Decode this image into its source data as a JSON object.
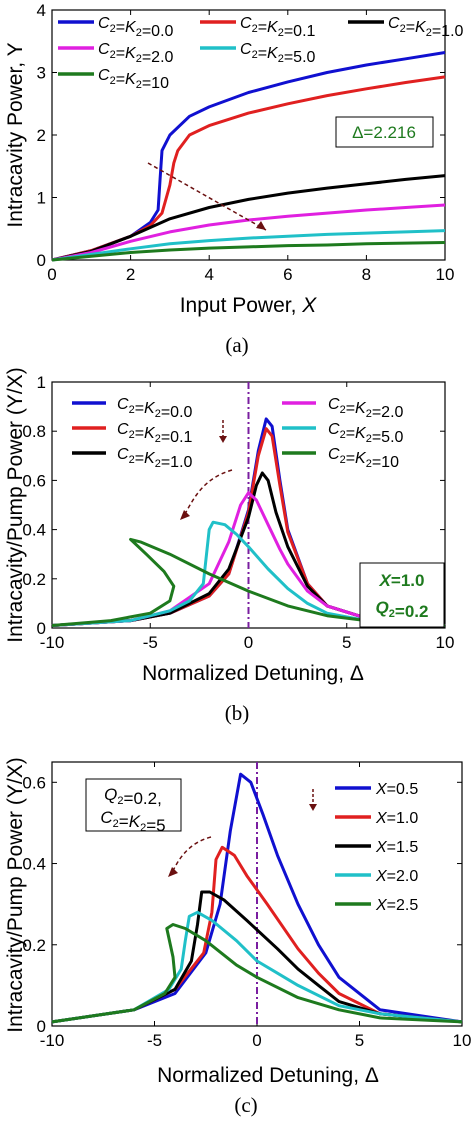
{
  "chart_data": [
    {
      "panel": "a",
      "type": "line",
      "caption": "(a)",
      "xlabel": "Input Power, X",
      "ylabel": "Intracavity Power, Y",
      "xlim": [
        0,
        10
      ],
      "ylim": [
        0,
        4
      ],
      "xticks": [
        "0",
        "2",
        "4",
        "6",
        "8",
        "10"
      ],
      "yticks": [
        "0",
        "1",
        "2",
        "3",
        "4"
      ],
      "legend_position": "top",
      "annotation": "Δ=2.216",
      "annotation_color": "#1e7a1e",
      "series": [
        {
          "name": "C2=K2=0.0",
          "color": "#1010d0",
          "x": [
            0,
            1,
            2,
            2.5,
            2.7,
            2.75,
            2.8,
            3,
            3.5,
            4,
            5,
            6,
            7,
            8,
            9,
            10
          ],
          "y": [
            0,
            0.15,
            0.38,
            0.6,
            0.8,
            1.3,
            1.75,
            2.0,
            2.3,
            2.45,
            2.68,
            2.85,
            3.0,
            3.12,
            3.22,
            3.32
          ]
        },
        {
          "name": "C2=K2=0.1",
          "color": "#e02020",
          "x": [
            0,
            1,
            2,
            2.5,
            2.8,
            3.0,
            3.1,
            3.2,
            3.5,
            4,
            5,
            6,
            7,
            8,
            9,
            10
          ],
          "y": [
            0,
            0.15,
            0.38,
            0.55,
            0.75,
            1.2,
            1.55,
            1.75,
            2.0,
            2.15,
            2.35,
            2.5,
            2.63,
            2.74,
            2.84,
            2.93
          ]
        },
        {
          "name": "C2=K2=1.0",
          "color": "#000000",
          "x": [
            0,
            1,
            2,
            3,
            4,
            5,
            6,
            7,
            8,
            9,
            10
          ],
          "y": [
            0,
            0.14,
            0.38,
            0.66,
            0.84,
            0.97,
            1.07,
            1.15,
            1.22,
            1.29,
            1.35
          ]
        },
        {
          "name": "C2=K2=2.0",
          "color": "#e020e0",
          "x": [
            0,
            1,
            2,
            3,
            4,
            5,
            6,
            7,
            8,
            9,
            10
          ],
          "y": [
            0,
            0.12,
            0.3,
            0.45,
            0.56,
            0.64,
            0.7,
            0.75,
            0.8,
            0.84,
            0.88
          ]
        },
        {
          "name": "C2=K2=5.0",
          "color": "#20c0c8",
          "x": [
            0,
            1,
            2,
            3,
            4,
            5,
            6,
            7,
            8,
            9,
            10
          ],
          "y": [
            0,
            0.09,
            0.18,
            0.26,
            0.31,
            0.35,
            0.38,
            0.41,
            0.43,
            0.45,
            0.47
          ]
        },
        {
          "name": "C2=K2=10",
          "color": "#1e7a1e",
          "x": [
            0,
            1,
            2,
            3,
            4,
            5,
            6,
            7,
            8,
            9,
            10
          ],
          "y": [
            0,
            0.06,
            0.12,
            0.16,
            0.19,
            0.21,
            0.23,
            0.24,
            0.26,
            0.27,
            0.28
          ]
        }
      ]
    },
    {
      "panel": "b",
      "type": "line",
      "caption": "(b)",
      "xlabel": "Normalized Detuning, Δ",
      "ylabel": "Intracavity/Pump Power (Y/X)",
      "xlim": [
        -10,
        10
      ],
      "ylim": [
        0,
        1
      ],
      "xticks": [
        "-10",
        "-5",
        "0",
        "5",
        "10"
      ],
      "yticks": [
        "0",
        "0.2",
        "0.4",
        "0.6",
        "0.8",
        "1"
      ],
      "legend_position": "top",
      "annotation_lines": [
        "X=1.0",
        "Q2=0.2"
      ],
      "annotation_color": "#1e7a1e",
      "series": [
        {
          "name": "C2=K2=0.0",
          "color": "#1010d0",
          "x": [
            -10,
            -6,
            -4,
            -2,
            -1,
            0,
            0.5,
            0.9,
            1.2,
            1.6,
            2,
            3,
            4,
            6,
            10
          ],
          "y": [
            0.01,
            0.03,
            0.06,
            0.13,
            0.22,
            0.48,
            0.72,
            0.85,
            0.82,
            0.6,
            0.4,
            0.18,
            0.09,
            0.04,
            0.01
          ]
        },
        {
          "name": "C2=K2=0.1",
          "color": "#e02020",
          "x": [
            -10,
            -6,
            -4,
            -2,
            -1,
            0,
            0.5,
            0.9,
            1.2,
            1.6,
            2,
            3,
            4,
            6,
            10
          ],
          "y": [
            0.01,
            0.03,
            0.06,
            0.13,
            0.22,
            0.47,
            0.7,
            0.81,
            0.78,
            0.58,
            0.39,
            0.18,
            0.09,
            0.04,
            0.01
          ]
        },
        {
          "name": "C2=K2=1.0",
          "color": "#000000",
          "x": [
            -10,
            -6,
            -4,
            -2,
            -1,
            0,
            0.4,
            0.7,
            1.0,
            1.4,
            2,
            3,
            4,
            6,
            10
          ],
          "y": [
            0.01,
            0.03,
            0.06,
            0.14,
            0.24,
            0.45,
            0.58,
            0.63,
            0.6,
            0.47,
            0.33,
            0.17,
            0.09,
            0.04,
            0.01
          ]
        },
        {
          "name": "C2=K2=2.0",
          "color": "#e020e0",
          "x": [
            -10,
            -6,
            -4,
            -2,
            -1,
            -0.4,
            0,
            0.4,
            1.0,
            1.6,
            2,
            3,
            4,
            6,
            10
          ],
          "y": [
            0.01,
            0.03,
            0.07,
            0.18,
            0.35,
            0.5,
            0.55,
            0.52,
            0.42,
            0.32,
            0.26,
            0.15,
            0.09,
            0.04,
            0.01
          ]
        },
        {
          "name": "C2=K2=5.0",
          "color": "#20c0c8",
          "x": [
            -10,
            -6,
            -4,
            -3,
            -2.3,
            -2.0,
            -1.8,
            -1.2,
            -0.6,
            0,
            1,
            2,
            3,
            4,
            6,
            10
          ],
          "y": [
            0.01,
            0.03,
            0.07,
            0.11,
            0.18,
            0.4,
            0.43,
            0.42,
            0.38,
            0.33,
            0.24,
            0.16,
            0.1,
            0.06,
            0.03,
            0.01
          ]
        },
        {
          "name": "C2=K2=10",
          "color": "#1e7a1e",
          "x": [
            -10,
            -7,
            -5,
            -4,
            -3.8,
            -4.3,
            -5.2,
            -6,
            -5.5,
            -4,
            -2,
            0,
            2,
            4,
            6,
            10
          ],
          "y": [
            0.01,
            0.03,
            0.06,
            0.11,
            0.17,
            0.23,
            0.3,
            0.36,
            0.35,
            0.3,
            0.22,
            0.15,
            0.09,
            0.05,
            0.03,
            0.01
          ]
        }
      ]
    },
    {
      "panel": "c",
      "type": "line",
      "caption": "(c)",
      "xlabel": "Normalized Detuning, Δ",
      "ylabel": "Intracavity/Pump Power (Y/X)",
      "xlim": [
        -10,
        10
      ],
      "ylim": [
        0,
        0.65
      ],
      "xticks": [
        "-10",
        "-5",
        "0",
        "5",
        "10"
      ],
      "yticks": [
        "0",
        "0.2",
        "0.4",
        "0.6"
      ],
      "legend_position": "right",
      "annotation_lines": [
        "Q2=0.2,",
        "C2=K2=5"
      ],
      "series": [
        {
          "name": "X=0.5",
          "color": "#1010d0",
          "x": [
            -10,
            -6,
            -4,
            -2.5,
            -1.8,
            -1.3,
            -0.8,
            -0.3,
            0.3,
            1,
            2,
            3,
            4,
            6,
            10
          ],
          "y": [
            0.01,
            0.04,
            0.08,
            0.18,
            0.3,
            0.48,
            0.62,
            0.6,
            0.52,
            0.42,
            0.3,
            0.2,
            0.12,
            0.04,
            0.01
          ]
        },
        {
          "name": "X=1.0",
          "color": "#e02020",
          "x": [
            -10,
            -6,
            -4,
            -2.6,
            -2.2,
            -2.0,
            -1.7,
            -1.1,
            -0.5,
            0.5,
            2,
            3,
            4,
            6,
            10
          ],
          "y": [
            0.01,
            0.04,
            0.09,
            0.18,
            0.28,
            0.41,
            0.44,
            0.42,
            0.37,
            0.3,
            0.19,
            0.13,
            0.08,
            0.03,
            0.01
          ]
        },
        {
          "name": "X=1.5",
          "color": "#000000",
          "x": [
            -10,
            -6,
            -4,
            -3.2,
            -2.9,
            -2.7,
            -2.3,
            -1.6,
            -0.5,
            1,
            2,
            3,
            4,
            6,
            10
          ],
          "y": [
            0.01,
            0.04,
            0.09,
            0.16,
            0.25,
            0.33,
            0.33,
            0.31,
            0.26,
            0.19,
            0.14,
            0.1,
            0.06,
            0.03,
            0.01
          ]
        },
        {
          "name": "X=2.0",
          "color": "#20c0c8",
          "x": [
            -10,
            -6,
            -4.3,
            -3.7,
            -3.5,
            -3.3,
            -2.9,
            -2.2,
            -1,
            0,
            1,
            2,
            4,
            6,
            10
          ],
          "y": [
            0.01,
            0.04,
            0.09,
            0.14,
            0.21,
            0.27,
            0.28,
            0.26,
            0.21,
            0.16,
            0.13,
            0.1,
            0.05,
            0.03,
            0.01
          ]
        },
        {
          "name": "X=2.5",
          "color": "#1e7a1e",
          "x": [
            -10,
            -6,
            -4.5,
            -4.0,
            -4.1,
            -4.4,
            -4.1,
            -3.5,
            -2.5,
            -1,
            0,
            2,
            4,
            6,
            10
          ],
          "y": [
            0.01,
            0.04,
            0.08,
            0.12,
            0.17,
            0.24,
            0.25,
            0.24,
            0.21,
            0.15,
            0.12,
            0.07,
            0.04,
            0.02,
            0.01
          ]
        }
      ]
    }
  ]
}
